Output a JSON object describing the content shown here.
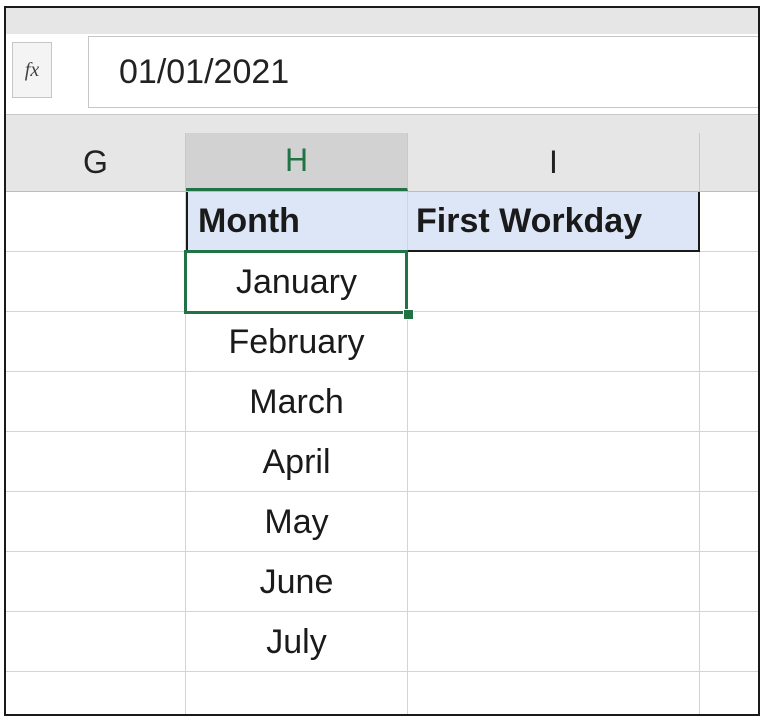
{
  "formula_bar": {
    "fx_label": "fx",
    "value": "01/01/2021"
  },
  "columns": [
    {
      "id": "G",
      "label": "G"
    },
    {
      "id": "H",
      "label": "H",
      "selected": true
    },
    {
      "id": "I",
      "label": "I"
    }
  ],
  "headers": {
    "H": "Month",
    "I": "First Workday"
  },
  "months": [
    "January",
    "February",
    "March",
    "April",
    "May",
    "June",
    "July"
  ],
  "active_cell": "H",
  "colors": {
    "accent": "#217346",
    "header_fill": "#dde6f6",
    "chrome": "#e6e6e6"
  }
}
